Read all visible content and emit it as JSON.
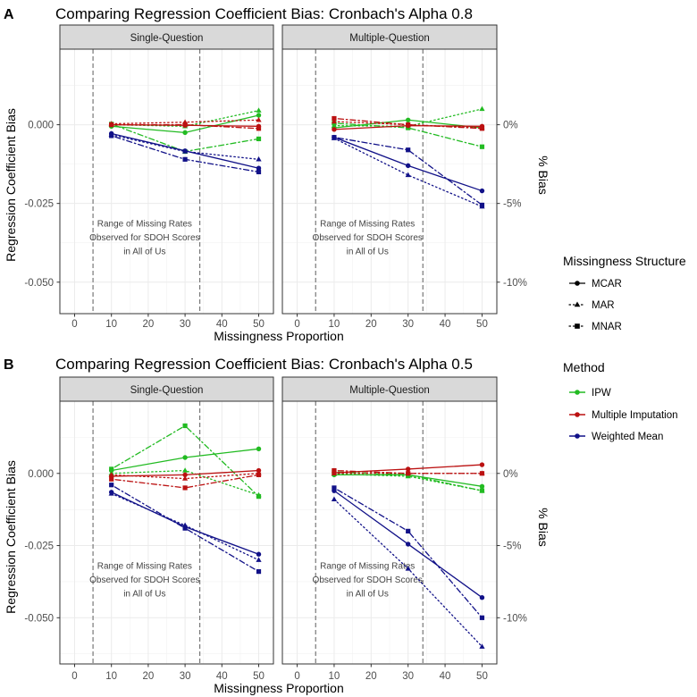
{
  "panels": [
    {
      "letter": "A",
      "title": "Comparing Regression Coefficient Bias: Cronbach's Alpha 0.8"
    },
    {
      "letter": "B",
      "title": "Comparing Regression Coefficient Bias: Cronbach's Alpha 0.5"
    }
  ],
  "facets": [
    "Single-Question",
    "Multiple-Question"
  ],
  "axes": {
    "xlabel": "Missingness Proportion",
    "ylabel": "Regression Coefficient Bias",
    "y2label": "% Bias",
    "xticks": [
      "0",
      "10",
      "20",
      "30",
      "40",
      "50"
    ],
    "xlim": [
      -4,
      54
    ]
  },
  "annotation": {
    "lines": [
      "Range of Missing Rates",
      "Observed for SDOH Scores",
      "in All of Us"
    ],
    "range": [
      5,
      34
    ]
  },
  "legend": {
    "structure_title": "Missingness Structure",
    "structures": [
      {
        "label": "MCAR",
        "dash": "solid",
        "shape": "circle"
      },
      {
        "label": "MAR",
        "dash": "dotted",
        "shape": "triangle"
      },
      {
        "label": "MNAR",
        "dash": "dotdash",
        "shape": "square"
      }
    ],
    "method_title": "Method",
    "methods": [
      {
        "label": "IPW",
        "color": "#22bb22"
      },
      {
        "label": "Multiple Imputation",
        "color": "#bb1111"
      },
      {
        "label": "Weighted Mean",
        "color": "#111188"
      }
    ]
  },
  "chart_data": [
    {
      "type": "line",
      "title": "Comparing Regression Coefficient Bias: Cronbach's Alpha 0.8",
      "xlabel": "Missingness Proportion",
      "ylabel": "Regression Coefficient Bias",
      "y2label": "% Bias",
      "x": [
        10,
        30,
        50
      ],
      "ylim": [
        -0.06,
        0.024
      ],
      "yticks": [
        0.0,
        -0.025,
        -0.05
      ],
      "ytick_labels": [
        "0.000",
        "-0.025",
        "-0.050"
      ],
      "y2_ticks": [
        0,
        -0.025,
        -0.05
      ],
      "y2_tick_labels": [
        "0%",
        "-5%",
        "-10%"
      ],
      "facets": [
        {
          "name": "Single-Question",
          "series": [
            {
              "method": "IPW",
              "structure": "MCAR",
              "values": [
                -0.0005,
                -0.0025,
                0.003
              ]
            },
            {
              "method": "IPW",
              "structure": "MAR",
              "values": [
                0.0,
                -0.0005,
                0.0045
              ]
            },
            {
              "method": "IPW",
              "structure": "MNAR",
              "values": [
                0.0002,
                -0.0085,
                -0.0045
              ]
            },
            {
              "method": "Multiple Imputation",
              "structure": "MCAR",
              "values": [
                0.0,
                -0.0002,
                -0.0005
              ]
            },
            {
              "method": "Multiple Imputation",
              "structure": "MAR",
              "values": [
                0.0003,
                0.0008,
                0.0015
              ]
            },
            {
              "method": "Multiple Imputation",
              "structure": "MNAR",
              "values": [
                0.0,
                0.0,
                -0.0012
              ]
            },
            {
              "method": "Weighted Mean",
              "structure": "MCAR",
              "values": [
                -0.0028,
                -0.0083,
                -0.0138
              ]
            },
            {
              "method": "Weighted Mean",
              "structure": "MAR",
              "values": [
                -0.0032,
                -0.0085,
                -0.011
              ]
            },
            {
              "method": "Weighted Mean",
              "structure": "MNAR",
              "values": [
                -0.0035,
                -0.011,
                -0.015
              ]
            }
          ]
        },
        {
          "name": "Multiple-Question",
          "series": [
            {
              "method": "IPW",
              "structure": "MCAR",
              "values": [
                -0.001,
                0.0015,
                -0.001
              ]
            },
            {
              "method": "IPW",
              "structure": "MAR",
              "values": [
                -0.0003,
                -0.0005,
                0.005
              ]
            },
            {
              "method": "IPW",
              "structure": "MNAR",
              "values": [
                0.0005,
                -0.001,
                -0.007
              ]
            },
            {
              "method": "Multiple Imputation",
              "structure": "MCAR",
              "values": [
                -0.0015,
                -0.0003,
                -0.0005
              ]
            },
            {
              "method": "Multiple Imputation",
              "structure": "MAR",
              "values": [
                0.001,
                0.0,
                -0.001
              ]
            },
            {
              "method": "Multiple Imputation",
              "structure": "MNAR",
              "values": [
                0.002,
                0.0,
                -0.0012
              ]
            },
            {
              "method": "Weighted Mean",
              "structure": "MCAR",
              "values": [
                -0.004,
                -0.013,
                -0.021
              ]
            },
            {
              "method": "Weighted Mean",
              "structure": "MAR",
              "values": [
                -0.0043,
                -0.016,
                -0.026
              ]
            },
            {
              "method": "Weighted Mean",
              "structure": "MNAR",
              "values": [
                -0.004,
                -0.008,
                -0.0255
              ]
            }
          ]
        }
      ]
    },
    {
      "type": "line",
      "title": "Comparing Regression Coefficient Bias: Cronbach's Alpha 0.5",
      "xlabel": "Missingness Proportion",
      "ylabel": "Regression Coefficient Bias",
      "y2label": "% Bias",
      "x": [
        10,
        30,
        50
      ],
      "ylim": [
        -0.066,
        0.025
      ],
      "yticks": [
        0.0,
        -0.025,
        -0.05
      ],
      "ytick_labels": [
        "0.000",
        "-0.025",
        "-0.050"
      ],
      "y2_ticks": [
        0,
        -0.025,
        -0.05
      ],
      "y2_tick_labels": [
        "0%",
        "-5%",
        "-10%"
      ],
      "facets": [
        {
          "name": "Single-Question",
          "series": [
            {
              "method": "IPW",
              "structure": "MCAR",
              "values": [
                0.001,
                0.0055,
                0.0085
              ]
            },
            {
              "method": "IPW",
              "structure": "MAR",
              "values": [
                0.0,
                0.001,
                -0.0075
              ]
            },
            {
              "method": "IPW",
              "structure": "MNAR",
              "values": [
                0.0015,
                0.0165,
                -0.008
              ]
            },
            {
              "method": "Multiple Imputation",
              "structure": "MCAR",
              "values": [
                -0.001,
                -0.0005,
                0.001
              ]
            },
            {
              "method": "Multiple Imputation",
              "structure": "MAR",
              "values": [
                -0.0005,
                -0.0018,
                0.0
              ]
            },
            {
              "method": "Multiple Imputation",
              "structure": "MNAR",
              "values": [
                -0.002,
                -0.005,
                -0.0005
              ]
            },
            {
              "method": "Weighted Mean",
              "structure": "MCAR",
              "values": [
                -0.0065,
                -0.0185,
                -0.028
              ]
            },
            {
              "method": "Weighted Mean",
              "structure": "MAR",
              "values": [
                -0.007,
                -0.018,
                -0.03
              ]
            },
            {
              "method": "Weighted Mean",
              "structure": "MNAR",
              "values": [
                -0.004,
                -0.019,
                -0.034
              ]
            }
          ]
        },
        {
          "name": "Multiple-Question",
          "series": [
            {
              "method": "IPW",
              "structure": "MCAR",
              "values": [
                -0.0005,
                -0.0005,
                -0.0045
              ]
            },
            {
              "method": "IPW",
              "structure": "MAR",
              "values": [
                -0.0002,
                -0.001,
                -0.006
              ]
            },
            {
              "method": "IPW",
              "structure": "MNAR",
              "values": [
                0.0005,
                -0.0005,
                -0.006
              ]
            },
            {
              "method": "Multiple Imputation",
              "structure": "MCAR",
              "values": [
                0.0002,
                0.0015,
                0.003
              ]
            },
            {
              "method": "Multiple Imputation",
              "structure": "MAR",
              "values": [
                0.0,
                0.0,
                0.0
              ]
            },
            {
              "method": "Multiple Imputation",
              "structure": "MNAR",
              "values": [
                0.001,
                0.0,
                0.0
              ]
            },
            {
              "method": "Weighted Mean",
              "structure": "MCAR",
              "values": [
                -0.006,
                -0.0245,
                -0.043
              ]
            },
            {
              "method": "Weighted Mean",
              "structure": "MAR",
              "values": [
                -0.009,
                -0.033,
                -0.06
              ]
            },
            {
              "method": "Weighted Mean",
              "structure": "MNAR",
              "values": [
                -0.005,
                -0.02,
                -0.05
              ]
            }
          ]
        }
      ]
    }
  ]
}
